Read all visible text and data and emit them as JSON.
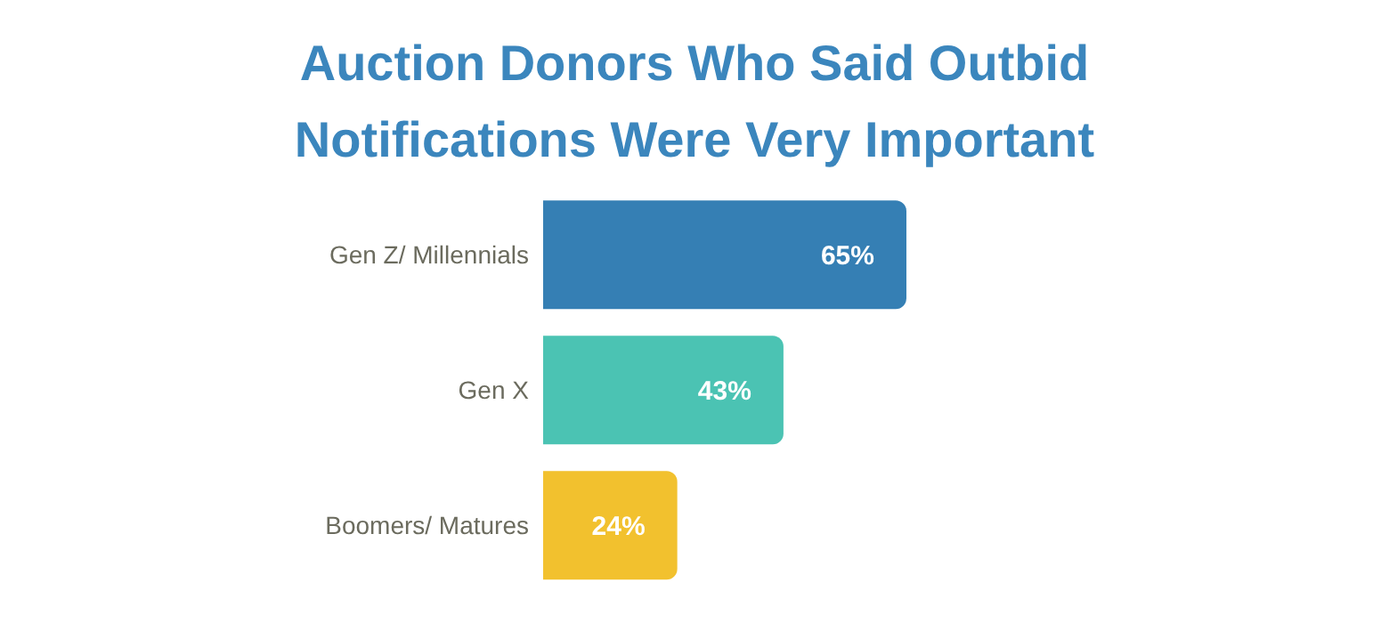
{
  "chart_data": {
    "type": "bar",
    "orientation": "horizontal",
    "title": "Auction Donors Who Said Outbid Notifications Were Very Important",
    "categories": [
      "Gen Z/ Millennials",
      "Gen X",
      "Boomers/ Matures"
    ],
    "values": [
      65,
      43,
      24
    ],
    "colors": [
      "#357fb4",
      "#4bc3b3",
      "#f2c12e"
    ],
    "value_labels": [
      "65%",
      "43%",
      "24%"
    ],
    "tick_labels": "y"
  }
}
